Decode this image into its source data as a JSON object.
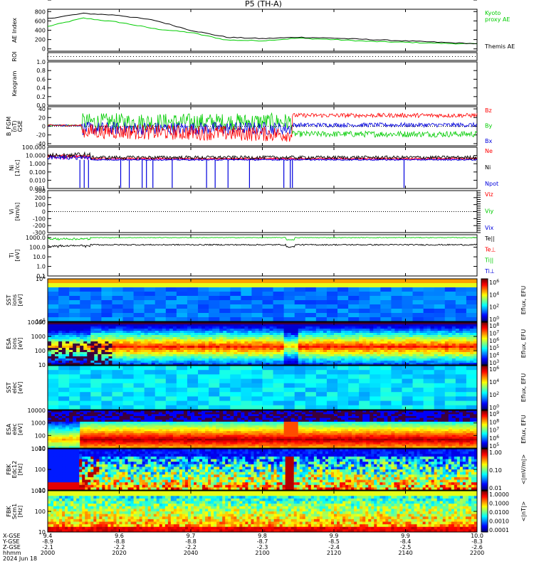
{
  "title": "P5 (TH-A)",
  "footer": {
    "row_labels": [
      "X-GSE",
      "Y-GSE",
      "Z-GSE",
      "hhmm",
      "2024 Jun 18"
    ],
    "columns": [
      {
        "vals": [
          "9.4",
          "-8.9",
          "-2.1",
          "2000"
        ]
      },
      {
        "vals": [
          "9.6",
          "-8.8",
          "-2.2",
          "2020"
        ]
      },
      {
        "vals": [
          "9.7",
          "-8.8",
          "-2.2",
          "2040"
        ]
      },
      {
        "vals": [
          "9.8",
          "-8.7",
          "-2.3",
          "2100"
        ]
      },
      {
        "vals": [
          "9.9",
          "-8.5",
          "-2.4",
          "2120"
        ]
      },
      {
        "vals": [
          "9.9",
          "-8.4",
          "-2.5",
          "2140"
        ]
      },
      {
        "vals": [
          "10.0",
          "-8.3",
          "-2.6",
          "2200"
        ]
      }
    ]
  },
  "chart_data": [
    {
      "id": "ae",
      "type": "line",
      "ylabel": "AE Index",
      "yticks": [
        "800",
        "600",
        "400",
        "200",
        "0"
      ],
      "ylim": [
        -50,
        850
      ],
      "x": [
        0,
        10,
        20,
        30,
        40,
        50,
        60,
        70,
        80,
        90,
        100,
        110,
        120
      ],
      "xunit": "minutes from 2000 UT",
      "series": [
        {
          "name": "Kyoto\nproxy AE",
          "color": "#00cc00",
          "values": [
            480,
            660,
            570,
            430,
            350,
            190,
            175,
            230,
            200,
            160,
            140,
            120,
            105
          ]
        },
        {
          "name": "Themis AE",
          "color": "#000000",
          "values": [
            650,
            760,
            720,
            610,
            400,
            250,
            220,
            250,
            230,
            200,
            170,
            140,
            110
          ]
        }
      ]
    },
    {
      "id": "roi",
      "type": "line",
      "ylabel": "ROI",
      "yticks": [],
      "series": [
        {
          "name": "",
          "values": []
        }
      ]
    },
    {
      "id": "keogram",
      "type": "line",
      "ylabel": "Keogram",
      "yticks": [
        "1.0",
        "0.8",
        "0.6",
        "0.4",
        "0.2",
        "0.0"
      ],
      "ylim": [
        0,
        1
      ]
    },
    {
      "id": "bfgm",
      "type": "line",
      "ylabel": "B_FGM\n(nT)\nGSE",
      "yticks": [
        "40",
        "20",
        "0",
        "-20",
        "-40"
      ],
      "ylim": [
        -45,
        45
      ],
      "series": [
        {
          "name": "Bz",
          "color": "#ff0000"
        },
        {
          "name": "By",
          "color": "#00cc00"
        },
        {
          "name": "Bx",
          "color": "#0000dd"
        }
      ]
    },
    {
      "id": "ni",
      "type": "line",
      "ylabel": "Ni\n[1/cc]",
      "yticks": [
        "100.000",
        "10.000",
        "1.000",
        "0.100",
        "0.010",
        "0.001"
      ],
      "series": [
        {
          "name": "Ne",
          "color": "#ff0000"
        },
        {
          "name": "Ni",
          "color": "#000000"
        },
        {
          "name": "Npot",
          "color": "#0000dd"
        }
      ]
    },
    {
      "id": "vi",
      "type": "line",
      "ylabel": "Vi\n[km/s]",
      "yticks": [
        "300",
        "200",
        "100",
        "0",
        "-100",
        "-200",
        "-300"
      ],
      "ylim": [
        -300,
        300
      ],
      "series": [
        {
          "name": "Viz",
          "color": "#ff0000"
        },
        {
          "name": "Viy",
          "color": "#00cc00"
        },
        {
          "name": "Vix",
          "color": "#0000dd"
        }
      ]
    },
    {
      "id": "ti",
      "type": "line",
      "ylabel": "Ti\n[eV]",
      "yticks": [
        "1000.0",
        "100.0",
        "10.0",
        "1.0",
        "0.1"
      ],
      "series": [
        {
          "name": "Te||",
          "color": "#000000"
        },
        {
          "name": "Te⊥",
          "color": "#ff0000"
        },
        {
          "name": "Ti||",
          "color": "#00cc00"
        },
        {
          "name": "Ti⊥",
          "color": "#0000dd"
        }
      ]
    },
    {
      "id": "sst_i",
      "type": "heatmap",
      "ylabel": "SST\nions\n[eV]",
      "yticks": [
        "10^6",
        "10^5"
      ],
      "cbar": {
        "label": "Eflux, EFU",
        "ticks": [
          "10^6",
          "10^4",
          "10^2",
          "10^0"
        ]
      }
    },
    {
      "id": "esa_i",
      "type": "heatmap",
      "ylabel": "ESA\nions\n[eV]",
      "yticks": [
        "10000",
        "1000",
        "100",
        "10"
      ],
      "cbar": {
        "label": "Eflux, EFU",
        "ticks": [
          "10^8",
          "10^7",
          "10^6",
          "10^5",
          "10^4",
          "10^3"
        ]
      }
    },
    {
      "id": "sst_e",
      "type": "heatmap",
      "ylabel": "SST\nelec\n[eV]",
      "yticks": [
        "10^5"
      ],
      "cbar": {
        "label": "Eflux, EFU",
        "ticks": [
          "10^6",
          "10^4",
          "10^2",
          "10^0"
        ]
      }
    },
    {
      "id": "esa_e",
      "type": "heatmap",
      "ylabel": "ESA\nelec\n[eV]",
      "yticks": [
        "10000",
        "1000",
        "100",
        "10"
      ],
      "cbar": {
        "label": "Eflux, EFU",
        "ticks": [
          "10^9",
          "10^8",
          "10^7",
          "10^6",
          "10^5"
        ]
      }
    },
    {
      "id": "fbk_e",
      "type": "heatmap",
      "ylabel": "FBK\nEdc12\n[Hz]",
      "yticks": [
        "1000",
        "100",
        "10"
      ],
      "cbar": {
        "label": "<|mV/m|>",
        "ticks": [
          "1.00",
          "0.10",
          "0.01"
        ]
      }
    },
    {
      "id": "fbk_b",
      "type": "heatmap",
      "ylabel": "FBK\nScm1\n[Hz]",
      "yticks": [
        "1000",
        "100",
        "10"
      ],
      "cbar": {
        "label": "<|nT|>",
        "ticks": [
          "1.0000",
          "0.1000",
          "0.0100",
          "0.0010",
          "0.0001"
        ]
      }
    }
  ],
  "colors": {
    "axis": "#000000",
    "bg": "#ffffff"
  }
}
